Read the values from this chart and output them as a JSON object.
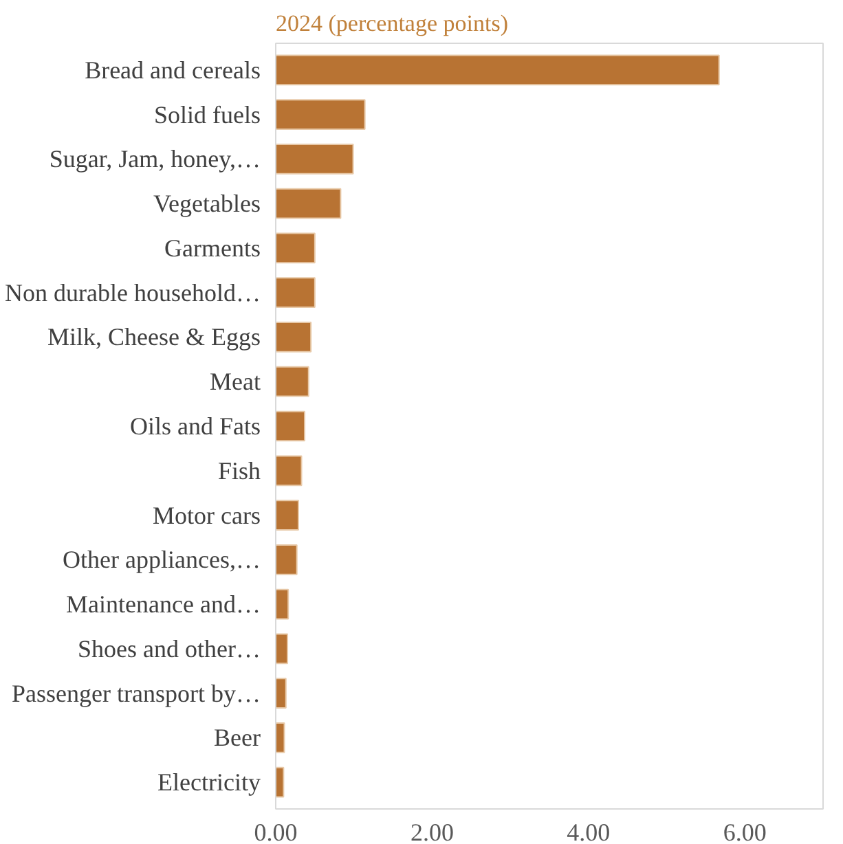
{
  "chart_data": {
    "type": "bar",
    "orientation": "horizontal",
    "title": "2024 (percentage points)",
    "categories": [
      "Bread and cereals",
      "Solid fuels",
      "Sugar, Jam, honey,…",
      "Vegetables",
      "Garments",
      "Non durable household…",
      "Milk, Cheese & Eggs",
      "Meat",
      "Oils and Fats",
      "Fish",
      "Motor cars",
      "Other appliances,…",
      "Maintenance and…",
      "Shoes and other…",
      "Passenger transport by…",
      "Beer",
      "Electricity"
    ],
    "values": [
      5.67,
      1.14,
      0.99,
      0.83,
      0.5,
      0.5,
      0.45,
      0.42,
      0.37,
      0.33,
      0.29,
      0.27,
      0.16,
      0.15,
      0.13,
      0.11,
      0.1
    ],
    "color": "#b87333",
    "xlim": [
      0,
      7
    ],
    "xticks": [
      {
        "value": 0,
        "label": "0.00"
      },
      {
        "value": 2,
        "label": "2.00"
      },
      {
        "value": 4,
        "label": "4.00"
      },
      {
        "value": 6,
        "label": "6.00"
      }
    ],
    "grid": false
  }
}
